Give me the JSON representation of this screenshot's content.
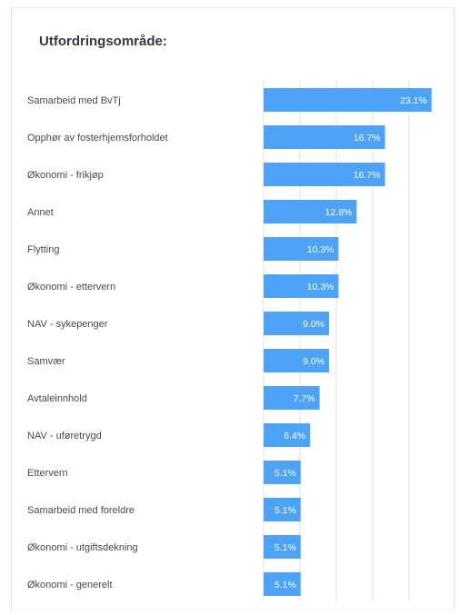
{
  "title": "Utfordringsområde:",
  "colors": {
    "bar": "#4da3f7",
    "grid": "#e3e3e3",
    "label": "#4a4a4a",
    "value_text": "#ffffff"
  },
  "chart_data": {
    "type": "bar",
    "orientation": "horizontal",
    "title": "Utfordringsområde:",
    "categories": [
      "Samarbeid med BvTj",
      "Opphør av fosterhjemsforholdet",
      "Økonomi - frikjøp",
      "Annet",
      "Flytting",
      "Økonomi - ettervern",
      "NAV - sykepenger",
      "Samvær",
      "Avtaleinnhold",
      "NAV - uføretrygd",
      "Ettervern",
      "Samarbeid med foreldre",
      "Økonomi - utgiftsdekning",
      "Økonomi - generelt"
    ],
    "values": [
      23.1,
      16.7,
      16.7,
      12.8,
      10.3,
      10.3,
      9.0,
      9.0,
      7.7,
      6.4,
      5.1,
      5.1,
      5.1,
      5.1
    ],
    "value_labels": [
      "23.1%",
      "16.7%",
      "16.7%",
      "12.8%",
      "10.3%",
      "10.3%",
      "9.0%",
      "9.0%",
      "7.7%",
      "6.4%",
      "5.1%",
      "5.1%",
      "5.1%",
      "5.1%"
    ],
    "xlim": [
      0,
      27
    ],
    "grid": true,
    "legend": "none"
  }
}
